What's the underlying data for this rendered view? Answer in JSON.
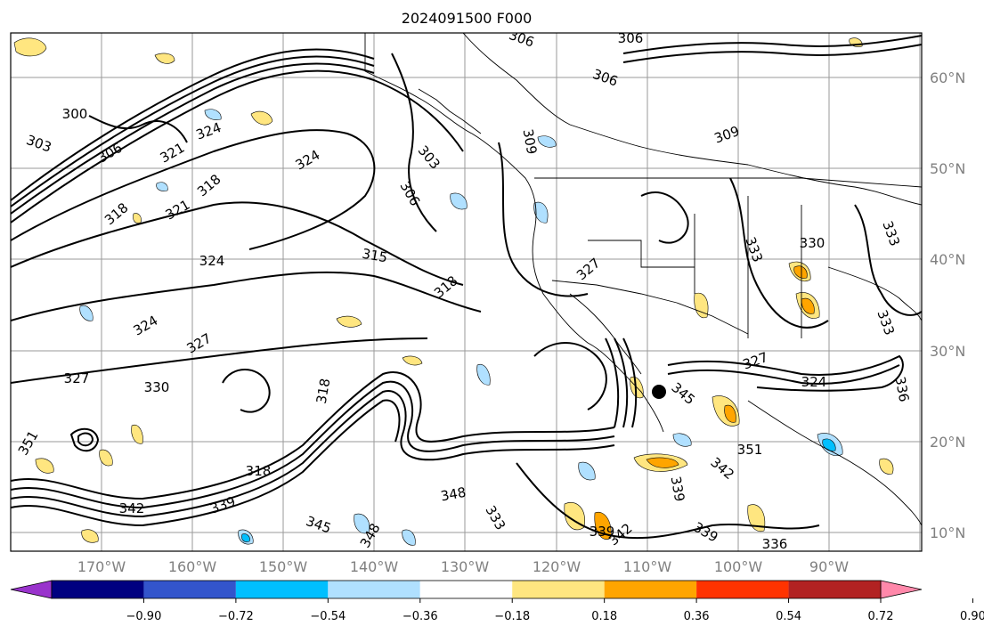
{
  "title": "2024091500 F000",
  "map": {
    "lon_labels": [
      "170°W",
      "160°W",
      "150°W",
      "140°W",
      "130°W",
      "120°W",
      "110°W",
      "100°W",
      "90°W"
    ],
    "lat_labels": [
      "60°N",
      "50°N",
      "40°N",
      "30°N",
      "20°N",
      "10°N"
    ],
    "contour_labels": [
      "300",
      "303",
      "306",
      "309",
      "315",
      "318",
      "321",
      "324",
      "327",
      "330",
      "333",
      "336",
      "339",
      "342",
      "345",
      "348",
      "351"
    ]
  },
  "colorbar": {
    "tick_labels": [
      "−0.90",
      "−0.72",
      "−0.54",
      "−0.36",
      "−0.18",
      "0.18",
      "0.36",
      "0.54",
      "0.72",
      "0.90"
    ],
    "colors": [
      "#9933cc",
      "#000080",
      "#3355cc",
      "#00bfff",
      "#b0e0ff",
      "#ffffff",
      "#ffe680",
      "#ffa500",
      "#ff3300",
      "#b22222",
      "#ff88aa"
    ],
    "extend": "both"
  }
}
